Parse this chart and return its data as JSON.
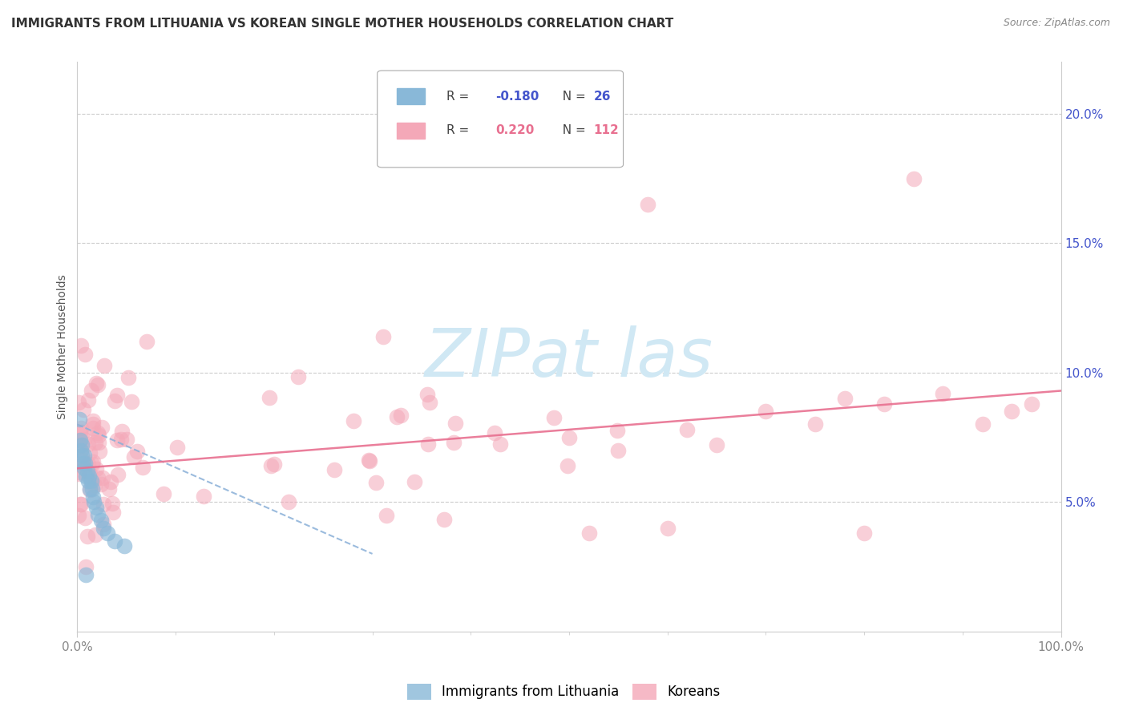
{
  "title": "IMMIGRANTS FROM LITHUANIA VS KOREAN SINGLE MOTHER HOUSEHOLDS CORRELATION CHART",
  "source": "Source: ZipAtlas.com",
  "ylabel": "Single Mother Households",
  "watermark": "ZIPat las",
  "blue_label": "Immigrants from Lithuania",
  "pink_label": "Koreans",
  "blue_R": -0.18,
  "blue_N": 26,
  "pink_R": 0.22,
  "pink_N": 112,
  "xlim": [
    0.0,
    1.0
  ],
  "ylim": [
    0.0,
    0.22
  ],
  "yticks": [
    0.05,
    0.1,
    0.15,
    0.2
  ],
  "ytick_labels": [
    "5.0%",
    "10.0%",
    "15.0%",
    "20.0%"
  ],
  "xtick_labels": [
    "0.0%",
    "100.0%"
  ],
  "grid_color": "#cccccc",
  "title_fontsize": 11,
  "axis_label_fontsize": 10,
  "tick_fontsize": 11,
  "blue_color": "#89b8d8",
  "pink_color": "#f4a8b8",
  "blue_line_color": "#8ab0d8",
  "pink_line_color": "#e87090",
  "blue_line": {
    "x0": 0.0,
    "x1": 0.3,
    "y0": 0.08,
    "y1": 0.03
  },
  "pink_line": {
    "x0": 0.0,
    "x1": 1.0,
    "y0": 0.063,
    "y1": 0.093
  },
  "watermark_color": "#d0e8f4",
  "watermark_fontsize": 60,
  "legend_box_color": "#ffffff",
  "legend_border_color": "#aaaaaa",
  "ytick_color": "#4455cc",
  "xtick_color": "#888888",
  "ylabel_color": "#555555",
  "source_color": "#888888"
}
